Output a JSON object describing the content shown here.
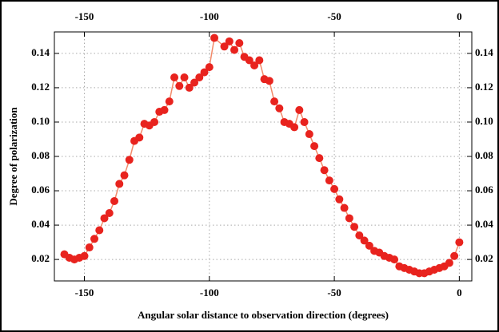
{
  "chart_data": {
    "type": "line",
    "x_label": "Angular solar distance to observation direction (degrees)",
    "y_label": "Degree of polarization",
    "x": [
      -158,
      -156,
      -154,
      -152,
      -150,
      -148,
      -146,
      -144,
      -142,
      -140,
      -138,
      -136,
      -134,
      -132,
      -130,
      -128,
      -126,
      -124,
      -122,
      -120,
      -118,
      -116,
      -114,
      -112,
      -110,
      -108,
      -106,
      -104,
      -102,
      -100,
      -98,
      -94,
      -92,
      -90,
      -88,
      -86,
      -84,
      -82,
      -80,
      -78,
      -76,
      -74,
      -72,
      -70,
      -68,
      -66,
      -64,
      -62,
      -60,
      -58,
      -56,
      -54,
      -52,
      -50,
      -48,
      -46,
      -44,
      -42,
      -40,
      -38,
      -36,
      -34,
      -32,
      -30,
      -28,
      -26,
      -24,
      -22,
      -20,
      -18,
      -16,
      -14,
      -12,
      -10,
      -8,
      -6,
      -4,
      -2,
      0
    ],
    "series": [
      {
        "color": "#e8231e",
        "line_color": "#f28a6a",
        "values": [
          0.023,
          0.021,
          0.02,
          0.021,
          0.022,
          0.027,
          0.032,
          0.037,
          0.044,
          0.047,
          0.054,
          0.064,
          0.069,
          0.078,
          0.089,
          0.091,
          0.099,
          0.098,
          0.1,
          0.106,
          0.107,
          0.112,
          0.126,
          0.121,
          0.126,
          0.12,
          0.123,
          0.126,
          0.129,
          0.132,
          0.149,
          0.144,
          0.147,
          0.142,
          0.146,
          0.138,
          0.136,
          0.133,
          0.136,
          0.125,
          0.124,
          0.112,
          0.108,
          0.1,
          0.099,
          0.097,
          0.107,
          0.1,
          0.093,
          0.086,
          0.079,
          0.072,
          0.066,
          0.061,
          0.055,
          0.05,
          0.044,
          0.039,
          0.034,
          0.031,
          0.028,
          0.025,
          0.024,
          0.022,
          0.021,
          0.02,
          0.016,
          0.015,
          0.014,
          0.013,
          0.012,
          0.012,
          0.013,
          0.014,
          0.015,
          0.016,
          0.018,
          0.022,
          0.03
        ]
      }
    ],
    "xlim": [
      -162,
      5
    ],
    "ylim": [
      0.0075,
      0.1525
    ],
    "xticks": [
      -150,
      -100,
      -50,
      0
    ],
    "yticks": [
      0.02,
      0.04,
      0.06,
      0.08,
      {
        "value": 0.1,
        "label": "0.10"
      },
      0.12,
      0.14
    ],
    "grid": true
  }
}
